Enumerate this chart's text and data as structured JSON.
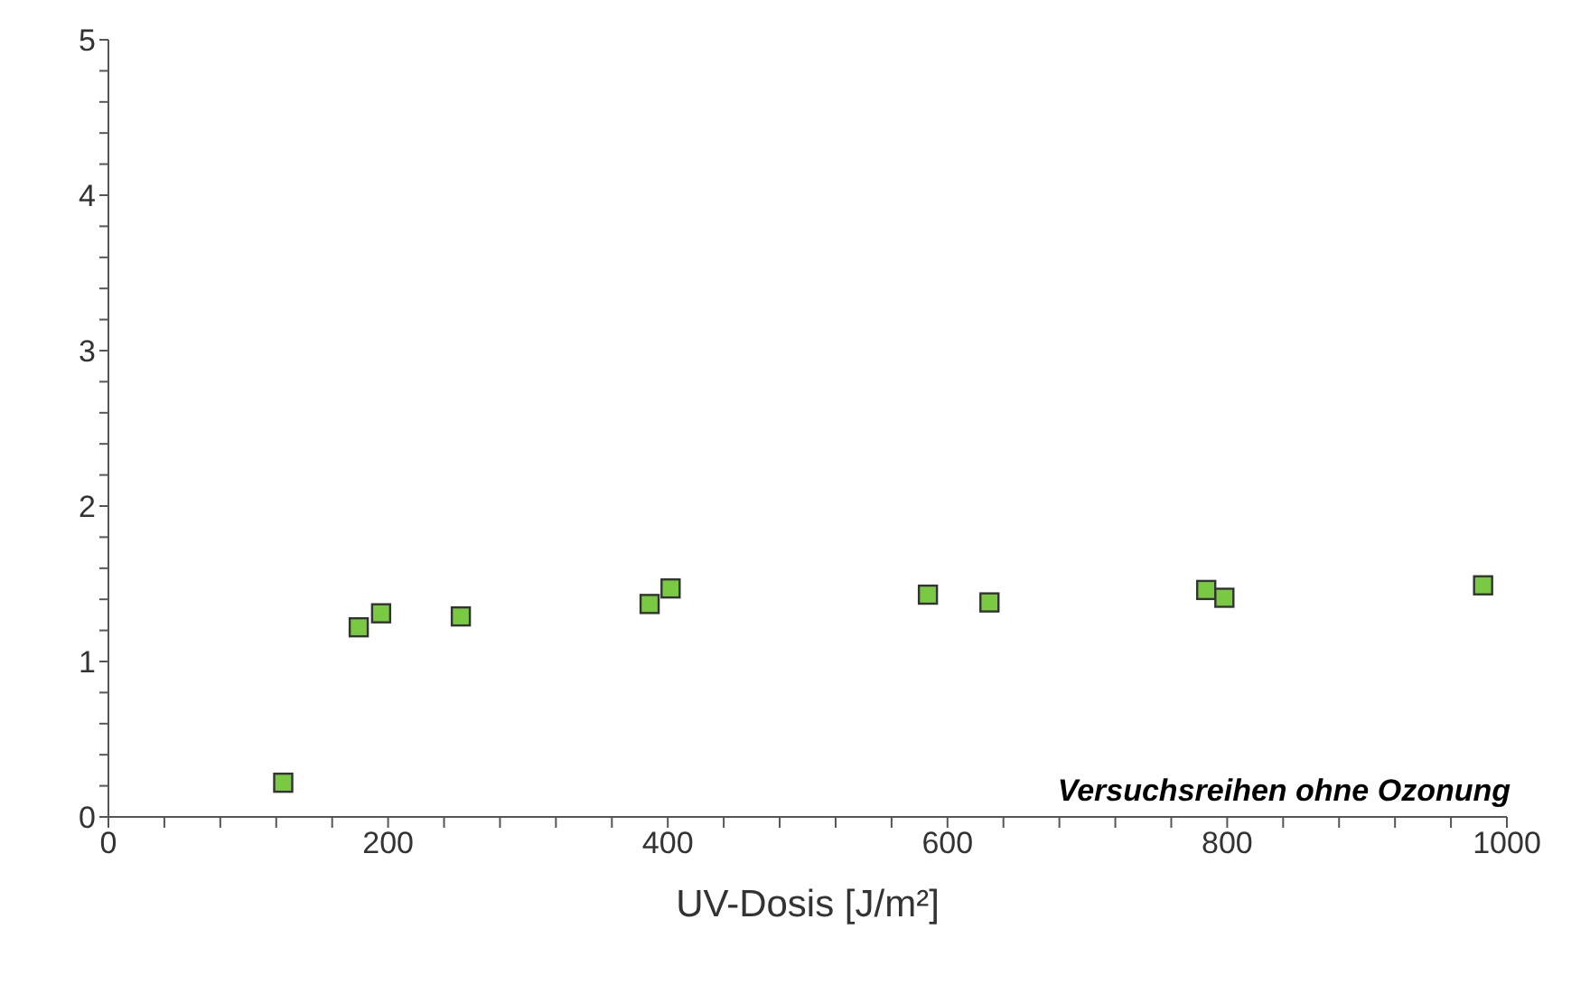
{
  "chart_data": {
    "type": "scatter",
    "xlabel": "UV-Dosis [J/m²]",
    "annotations": [
      "Versuchsreihen ohne Ozonung"
    ],
    "x": [
      125,
      179,
      195,
      252,
      387,
      402,
      586,
      630,
      785,
      798,
      983
    ],
    "series": [
      {
        "color": "#7ac943",
        "values": [
          0.22,
          1.22,
          1.31,
          1.29,
          1.37,
          1.47,
          1.43,
          1.38,
          1.46,
          1.41,
          1.49
        ]
      }
    ],
    "marker": "square",
    "grid": false,
    "xlim": [
      0,
      1000
    ],
    "xticks": [
      0,
      {
        "value": 40,
        "label": null
      },
      {
        "value": 80,
        "label": null
      },
      {
        "value": 120,
        "label": null
      },
      {
        "value": 160,
        "label": null
      },
      200,
      {
        "value": 240,
        "label": null
      },
      {
        "value": 280,
        "label": null
      },
      {
        "value": 320,
        "label": null
      },
      {
        "value": 360,
        "label": null
      },
      400,
      {
        "value": 440,
        "label": null
      },
      {
        "value": 480,
        "label": null
      },
      {
        "value": 520,
        "label": null
      },
      {
        "value": 560,
        "label": null
      },
      600,
      {
        "value": 640,
        "label": null
      },
      {
        "value": 680,
        "label": null
      },
      {
        "value": 720,
        "label": null
      },
      {
        "value": 760,
        "label": null
      },
      800,
      {
        "value": 840,
        "label": null
      },
      {
        "value": 880,
        "label": null
      },
      {
        "value": 920,
        "label": null
      },
      {
        "value": 960,
        "label": null
      },
      1000
    ],
    "ylim": [
      0,
      5
    ],
    "yticks": [
      0,
      {
        "value": 0.2,
        "label": null
      },
      {
        "value": 0.4,
        "label": null
      },
      {
        "value": 0.6,
        "label": null
      },
      {
        "value": 0.8,
        "label": null
      },
      1,
      {
        "value": 1.2,
        "label": null
      },
      {
        "value": 1.4,
        "label": null
      },
      {
        "value": 1.6,
        "label": null
      },
      {
        "value": 1.8,
        "label": null
      },
      2,
      {
        "value": 2.2,
        "label": null
      },
      {
        "value": 2.4,
        "label": null
      },
      {
        "value": 2.6,
        "label": null
      },
      {
        "value": 2.8,
        "label": null
      },
      3,
      {
        "value": 3.2,
        "label": null
      },
      {
        "value": 3.4,
        "label": null
      },
      {
        "value": 3.6,
        "label": null
      },
      {
        "value": 3.8,
        "label": null
      },
      4,
      {
        "value": 4.2,
        "label": null
      },
      {
        "value": 4.4,
        "label": null
      },
      {
        "value": 4.6,
        "label": null
      },
      {
        "value": 4.8,
        "label": null
      },
      5
    ]
  }
}
